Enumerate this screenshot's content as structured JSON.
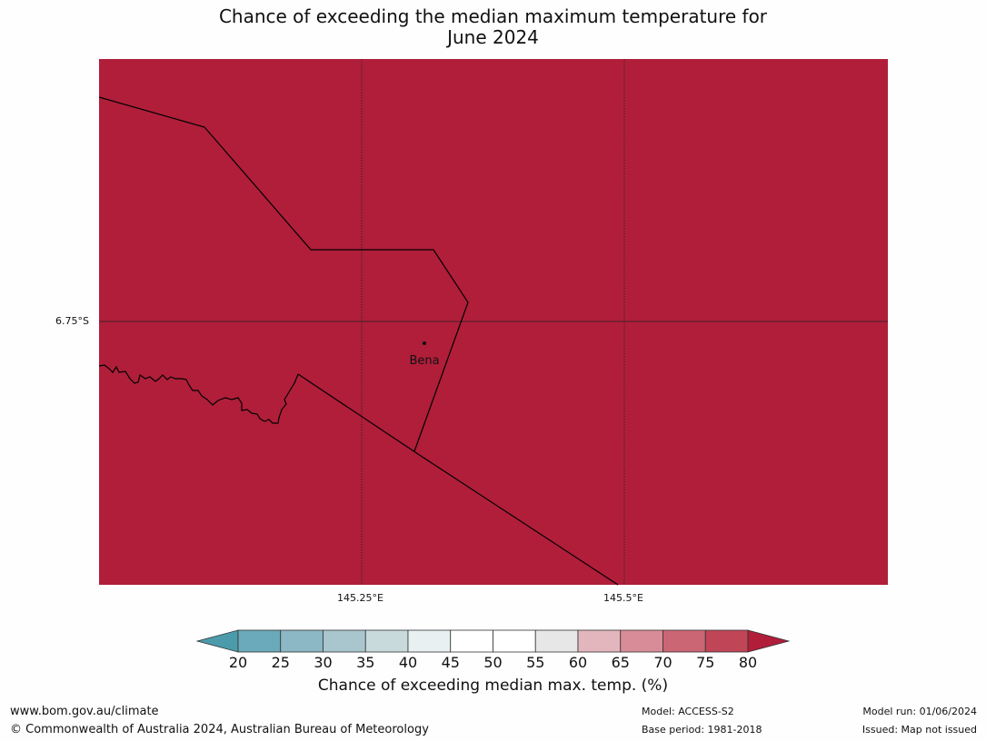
{
  "title": {
    "line1": "Chance of exceeding the median maximum temperature for",
    "line2": "June 2024"
  },
  "map": {
    "fill_color": "#b01e3a",
    "border_color": "#000000",
    "lat_label": "6.75°S",
    "lon_labels": [
      "145.25°E",
      "145.5°E"
    ],
    "place_name": "Bena"
  },
  "colorbar": {
    "ticks": [
      "20",
      "25",
      "30",
      "35",
      "40",
      "45",
      "50",
      "55",
      "60",
      "65",
      "70",
      "75",
      "80"
    ],
    "colors": [
      "#4b9bab",
      "#6aaaba",
      "#8cb7c5",
      "#a9c6ce",
      "#c9dadd",
      "#e8f0f1",
      "#ffffff",
      "#ffffff",
      "#e7e7e7",
      "#e3b6bd",
      "#d88c97",
      "#cb6674",
      "#c04556",
      "#b01e3a"
    ],
    "label": "Chance of exceeding median max. temp. (%)"
  },
  "footer": {
    "website": "www.bom.gov.au/climate",
    "copyright": "© Commonwealth of Australia 2024, Australian Bureau of Meteorology",
    "model": "Model: ACCESS-S2",
    "base_period": "Base period: 1981-2018",
    "model_run": "Model run: 01/06/2024",
    "issued": "Issued: Map not issued"
  }
}
